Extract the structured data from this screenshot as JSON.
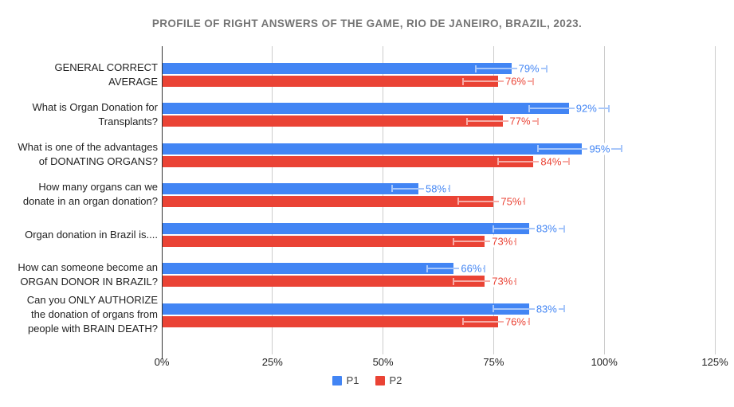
{
  "chart_data": {
    "type": "bar",
    "orientation": "horizontal",
    "title": "PROFILE OF RIGHT ANSWERS OF THE GAME, RIO DE JANEIRO, BRAZIL, 2023.",
    "title_color": "#757575",
    "categories": [
      "GENERAL CORRECT AVERAGE",
      "What is Organ Donation for Transplants?",
      "What is one of the advantages of DONATING ORGANS?",
      "How many organs can we donate in an organ donation?",
      "Organ donation in Brazil is....",
      "How can someone become an ORGAN DONOR IN BRAZIL?",
      "Can you ONLY AUTHORIZE the donation of organs from people with BRAIN DEATH?"
    ],
    "series": [
      {
        "name": "P1",
        "color": "#4285F4",
        "error_bar_color": "#A8C7FA",
        "values": [
          79,
          92,
          95,
          58,
          83,
          66,
          83
        ],
        "value_labels": [
          "79%",
          "92%",
          "95%",
          "58%",
          "83%",
          "66%",
          "83%"
        ],
        "error_low": [
          71,
          83,
          85,
          52,
          75,
          60,
          75
        ],
        "error_high": [
          87,
          101,
          104,
          65,
          91,
          73,
          91
        ]
      },
      {
        "name": "P2",
        "color": "#EA4335",
        "error_bar_color": "#F6ACA6",
        "values": [
          76,
          77,
          84,
          75,
          73,
          73,
          76
        ],
        "value_labels": [
          "76%",
          "77%",
          "84%",
          "75%",
          "73%",
          "73%",
          "76%"
        ],
        "error_low": [
          68,
          69,
          76,
          67,
          66,
          66,
          68
        ],
        "error_high": [
          84,
          85,
          92,
          82,
          80,
          80,
          83
        ]
      }
    ],
    "value_suffix": "%",
    "xlim": [
      0,
      125
    ],
    "x_ticks": [
      0,
      25,
      50,
      75,
      100,
      125
    ],
    "x_tick_labels": [
      "0%",
      "25%",
      "50%",
      "75%",
      "100%",
      "125%"
    ],
    "grid": true,
    "gridline_color": "#cccccc",
    "axis_line_color": "#333333",
    "legend_position": "bottom",
    "background_color": "#ffffff"
  }
}
